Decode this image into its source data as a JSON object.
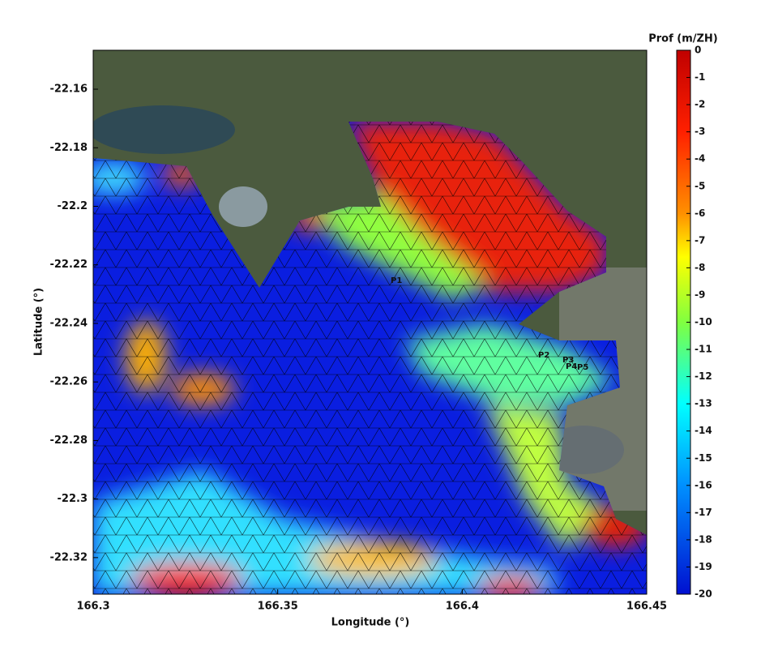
{
  "chart_data": {
    "type": "map",
    "xlabel": "Longitude (°)",
    "ylabel": "Latitude (°)",
    "xlim": [
      166.3,
      166.45
    ],
    "xticks": [
      166.3,
      166.35,
      166.4,
      166.45
    ],
    "ylim": [
      -22.3325,
      -22.1467
    ],
    "yticks": [
      -22.16,
      -22.18,
      -22.2,
      -22.22,
      -22.24,
      -22.26,
      -22.28,
      -22.3,
      -22.32
    ],
    "colorbar": {
      "title": "Prof (m/ZH)",
      "clim": [
        -20,
        0
      ],
      "ticks": [
        0,
        -1,
        -2,
        -3,
        -4,
        -5,
        -6,
        -7,
        -8,
        -9,
        -10,
        -11,
        -12,
        -13,
        -14,
        -15,
        -16,
        -17,
        -18,
        -19,
        -20
      ]
    },
    "stations": [
      "P1",
      "P2",
      "P3",
      "P4",
      "P5"
    ]
  }
}
